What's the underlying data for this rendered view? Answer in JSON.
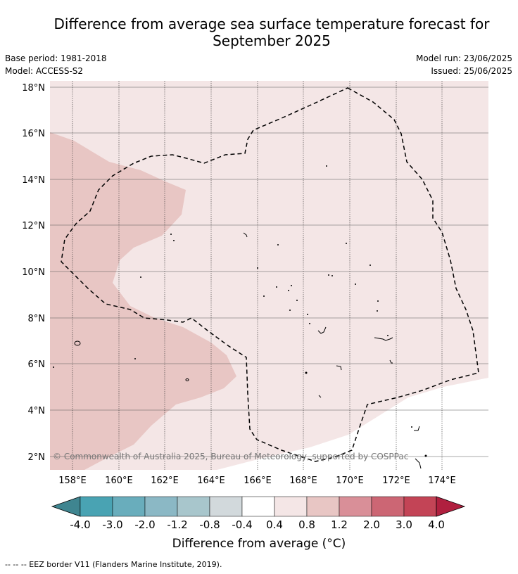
{
  "title_line1": "Difference from average sea surface temperature forecast for",
  "title_line2": "September 2025",
  "meta": {
    "base_period": "Base period: 1981-2018",
    "model": "Model: ACCESS-S2",
    "model_run": "Model run: 23/06/2025",
    "issued": "Issued: 25/06/2025"
  },
  "map": {
    "lat_ticks": [
      "2°N",
      "4°N",
      "6°N",
      "8°N",
      "10°N",
      "12°N",
      "14°N",
      "16°N",
      "18°N"
    ],
    "lon_ticks": [
      "158°E",
      "160°E",
      "162°E",
      "164°E",
      "166°E",
      "168°E",
      "170°E",
      "172°E",
      "174°E"
    ],
    "copyright": "© Commonwealth of Australia 2025, Bureau of Meteorology, supported by COSPPac",
    "colors": {
      "band_0_4_to_0_8": "#f4e6e6",
      "band_0_8_to_1_2": "#e8c6c4",
      "grid": "#555555"
    }
  },
  "colorbar": {
    "labels": [
      "-4.0",
      "-3.0",
      "-2.0",
      "-1.2",
      "-0.8",
      "-0.4",
      "0.4",
      "0.8",
      "1.2",
      "2.0",
      "3.0",
      "4.0"
    ],
    "colors": [
      "#3f8590",
      "#49a3b3",
      "#69adbc",
      "#8bb8c5",
      "#a8c6cc",
      "#d2d9dc",
      "#ffffff",
      "#f4e6e6",
      "#e8c6c4",
      "#d98f98",
      "#cc6674",
      "#c34456",
      "#b0203f"
    ],
    "title": "Difference from average (°C)"
  },
  "footnote": "--  --  -- EEZ border V11 (Flanders Marine Institute, 2019)."
}
